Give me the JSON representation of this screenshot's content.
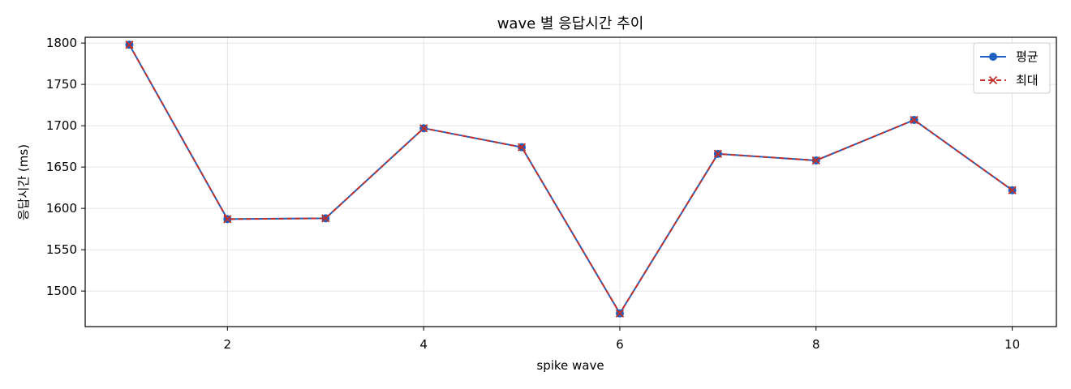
{
  "chart_data": {
    "type": "line",
    "title": "wave 별 응답시간 추이",
    "xlabel": "spike wave",
    "ylabel": "응답시간 (ms)",
    "x": [
      1,
      2,
      3,
      4,
      5,
      6,
      7,
      8,
      9,
      10
    ],
    "xticks": [
      2,
      4,
      6,
      8,
      10
    ],
    "yticks": [
      1500,
      1550,
      1600,
      1650,
      1700,
      1750,
      1800
    ],
    "xlim": [
      0.55,
      10.45
    ],
    "ylim": [
      1457,
      1807
    ],
    "grid": true,
    "legend_position": "top-right",
    "series": [
      {
        "name": "평균",
        "values": [
          1798,
          1587,
          1588,
          1697,
          1674,
          1473,
          1666,
          1658,
          1707,
          1622
        ],
        "color": "#1f5fbf",
        "line_style": "solid",
        "marker": "circle"
      },
      {
        "name": "최대",
        "values": [
          1798,
          1587,
          1588,
          1697,
          1674,
          1473,
          1666,
          1658,
          1707,
          1622
        ],
        "color": "#c0312b",
        "line_style": "dashed",
        "marker": "x"
      }
    ]
  }
}
